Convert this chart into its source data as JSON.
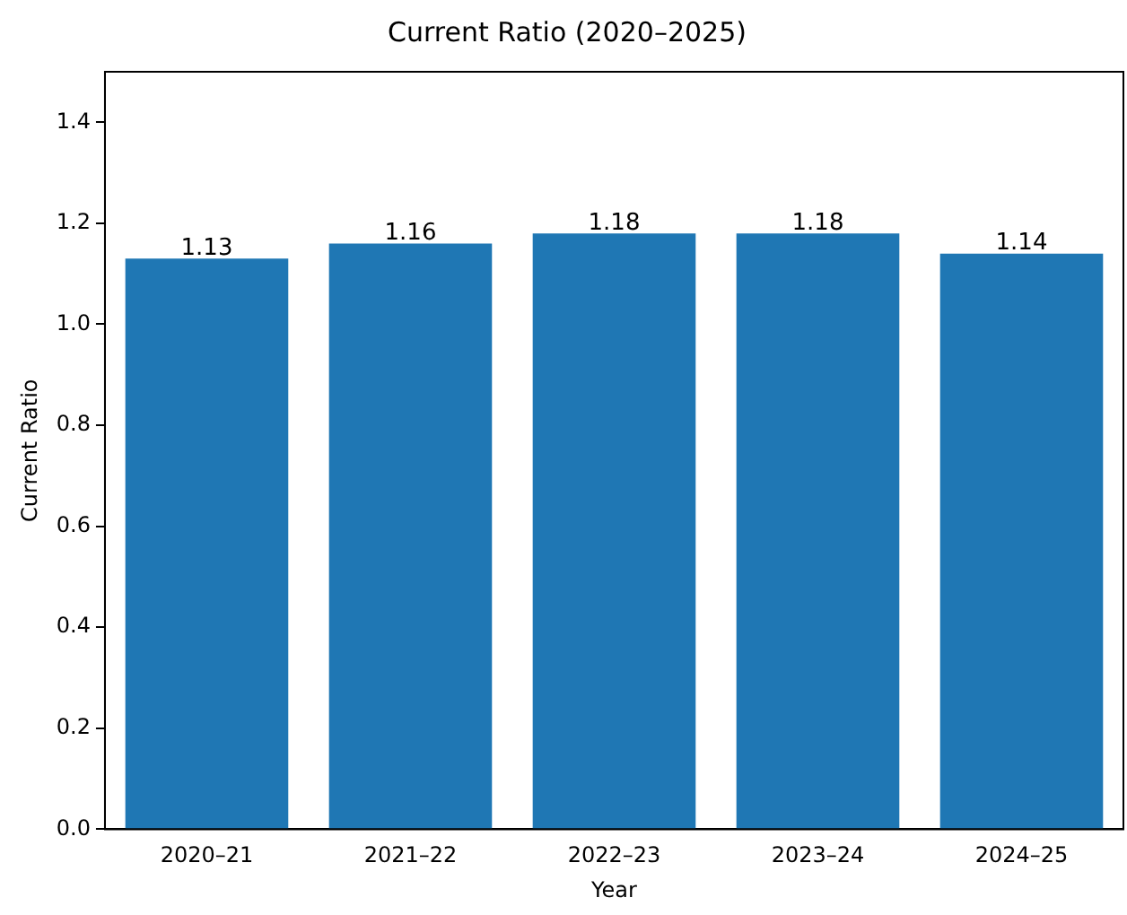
{
  "chart_data": {
    "type": "bar",
    "title": "Current Ratio (2020–2025)",
    "xlabel": "Year",
    "ylabel": "Current Ratio",
    "categories": [
      "2020–21",
      "2021–22",
      "2022–23",
      "2023–24",
      "2024–25"
    ],
    "values": [
      1.13,
      1.16,
      1.18,
      1.18,
      1.14
    ],
    "color": "#1f77b4",
    "ylim": [
      0,
      1.5
    ],
    "yticks": [
      {
        "value": 0,
        "label": "0.0"
      },
      {
        "value": 0.2,
        "label": "0.2"
      },
      {
        "value": 0.4,
        "label": "0.4"
      },
      {
        "value": 0.6,
        "label": "0.6"
      },
      {
        "value": 0.8,
        "label": "0.8"
      },
      {
        "value": 1,
        "label": "1.0"
      },
      {
        "value": 1.2,
        "label": "1.2"
      },
      {
        "value": 1.4,
        "label": "1.4"
      }
    ],
    "grid": false,
    "legend": false,
    "data_labels": true
  }
}
